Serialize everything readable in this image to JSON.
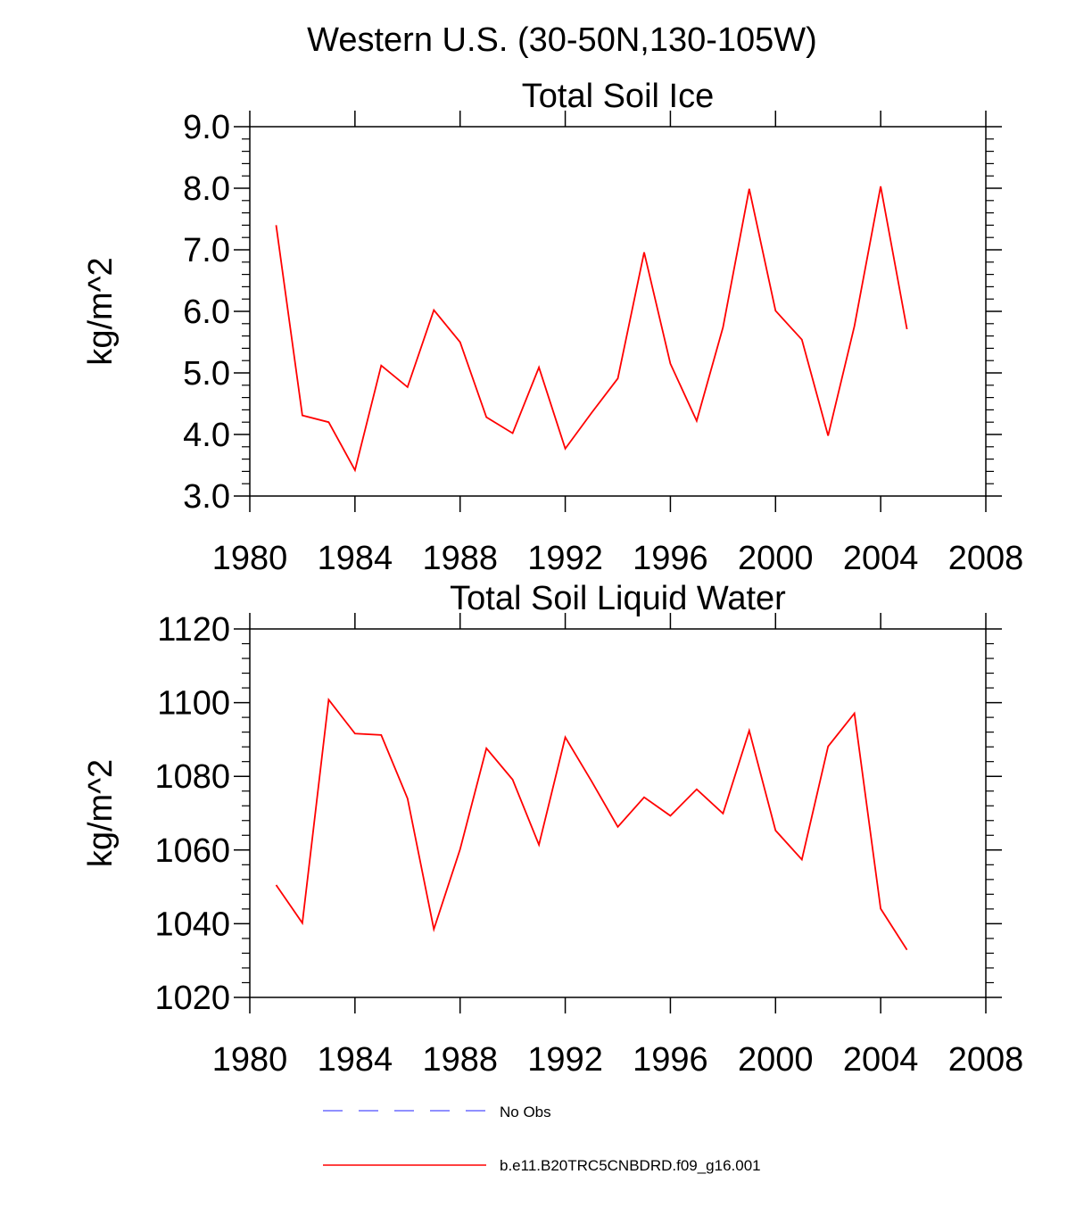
{
  "page_title": "Western U.S. (30-50N,130-105W)",
  "colors": {
    "model_line": "#ff0000",
    "obs_line": "#6b6bff",
    "axis": "#000000"
  },
  "legend": {
    "obs_label": "No Obs",
    "model_label": "b.e11.B20TRC5CNBDRD.f09_g16.001"
  },
  "chart_data": [
    {
      "type": "line",
      "title": "Total Soil Ice",
      "xlabel": "",
      "ylabel": "kg/m^2",
      "xlim": [
        1980,
        2008
      ],
      "ylim": [
        3.0,
        9.0
      ],
      "x_ticks": [
        1980,
        1984,
        1988,
        1992,
        1996,
        2000,
        2004,
        2008
      ],
      "y_ticks": [
        3.0,
        4.0,
        5.0,
        6.0,
        7.0,
        8.0,
        9.0
      ],
      "y_tick_labels": [
        "3.0",
        "4.0",
        "5.0",
        "6.0",
        "7.0",
        "8.0",
        "9.0"
      ],
      "y_minor_step": 0.2,
      "series": [
        {
          "name": "b.e11.B20TRC5CNBDRD.f09_g16.001",
          "x": [
            1981,
            1982,
            1983,
            1984,
            1985,
            1986,
            1987,
            1988,
            1989,
            1990,
            1991,
            1992,
            1993,
            1994,
            1995,
            1996,
            1997,
            1998,
            1999,
            2000,
            2001,
            2002,
            2003,
            2004,
            2005
          ],
          "values": [
            7.4,
            4.31,
            4.2,
            3.42,
            5.12,
            4.77,
            6.02,
            5.5,
            4.28,
            4.02,
            5.09,
            3.77,
            4.35,
            4.91,
            6.96,
            5.15,
            4.22,
            5.74,
            7.99,
            6.01,
            5.54,
            3.98,
            5.76,
            8.03,
            5.71
          ]
        }
      ]
    },
    {
      "type": "line",
      "title": "Total Soil Liquid Water",
      "xlabel": "",
      "ylabel": "kg/m^2",
      "xlim": [
        1980,
        2008
      ],
      "ylim": [
        1020,
        1120
      ],
      "x_ticks": [
        1980,
        1984,
        1988,
        1992,
        1996,
        2000,
        2004,
        2008
      ],
      "y_ticks": [
        1020,
        1040,
        1060,
        1080,
        1100,
        1120
      ],
      "y_tick_labels": [
        "1020",
        "1040",
        "1060",
        "1080",
        "1100",
        "1120"
      ],
      "y_minor_step": 4,
      "series": [
        {
          "name": "b.e11.B20TRC5CNBDRD.f09_g16.001",
          "x": [
            1981,
            1982,
            1983,
            1984,
            1985,
            1986,
            1987,
            1988,
            1989,
            1990,
            1991,
            1992,
            1993,
            1994,
            1995,
            1996,
            1997,
            1998,
            1999,
            2000,
            2001,
            2002,
            2003,
            2004,
            2005
          ],
          "values": [
            1050.5,
            1040.2,
            1100.8,
            1091.6,
            1091.2,
            1074,
            1038.5,
            1060.2,
            1087.6,
            1079.1,
            1061.4,
            1090.6,
            1078.7,
            1066.3,
            1074.3,
            1069.3,
            1076.5,
            1069.9,
            1092.4,
            1065.3,
            1057.4,
            1088.1,
            1097.1,
            1044.1,
            1032.9
          ]
        }
      ]
    }
  ]
}
